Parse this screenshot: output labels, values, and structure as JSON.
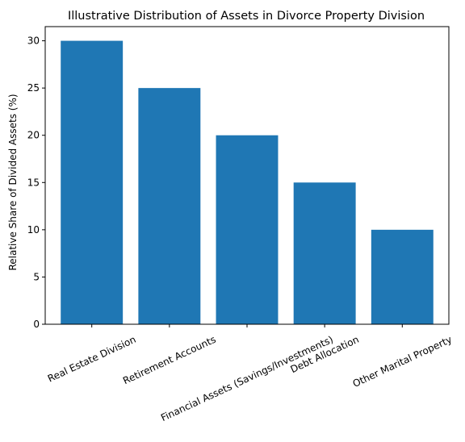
{
  "chart_data": {
    "type": "bar",
    "title": "Illustrative Distribution of Assets in Divorce Property Division",
    "xlabel": "",
    "ylabel": "Relative Share of Divided Assets (%)",
    "categories": [
      "Real Estate Division",
      "Retirement Accounts",
      "Financial Assets (Savings/Investments)",
      "Debt Allocation",
      "Other Marital Property"
    ],
    "values": [
      30,
      25,
      20,
      15,
      10
    ],
    "ylim": [
      0,
      31.5
    ],
    "yticks": [
      0,
      5,
      10,
      15,
      20,
      25,
      30
    ],
    "bar_color": "#1f77b4",
    "grid": false,
    "legend": "none"
  }
}
